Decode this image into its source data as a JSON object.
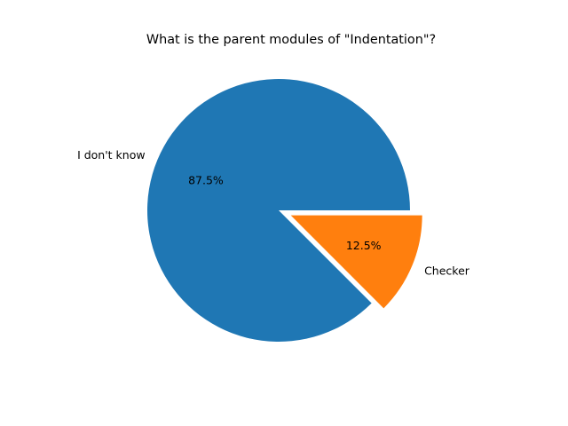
{
  "chart_data": {
    "type": "pie",
    "title": "What is the parent modules of \"Indentation\"?",
    "slices": [
      {
        "label": "I don't know",
        "value": 87.5,
        "percent_label": "87.5%",
        "color": "#1f77b4",
        "exploded": false
      },
      {
        "label": "Checker",
        "value": 12.5,
        "percent_label": "12.5%",
        "color": "#ff7f0e",
        "exploded": true
      }
    ],
    "start_angle": "0° (3 o'clock), counter-clockwise",
    "legend": "none"
  }
}
